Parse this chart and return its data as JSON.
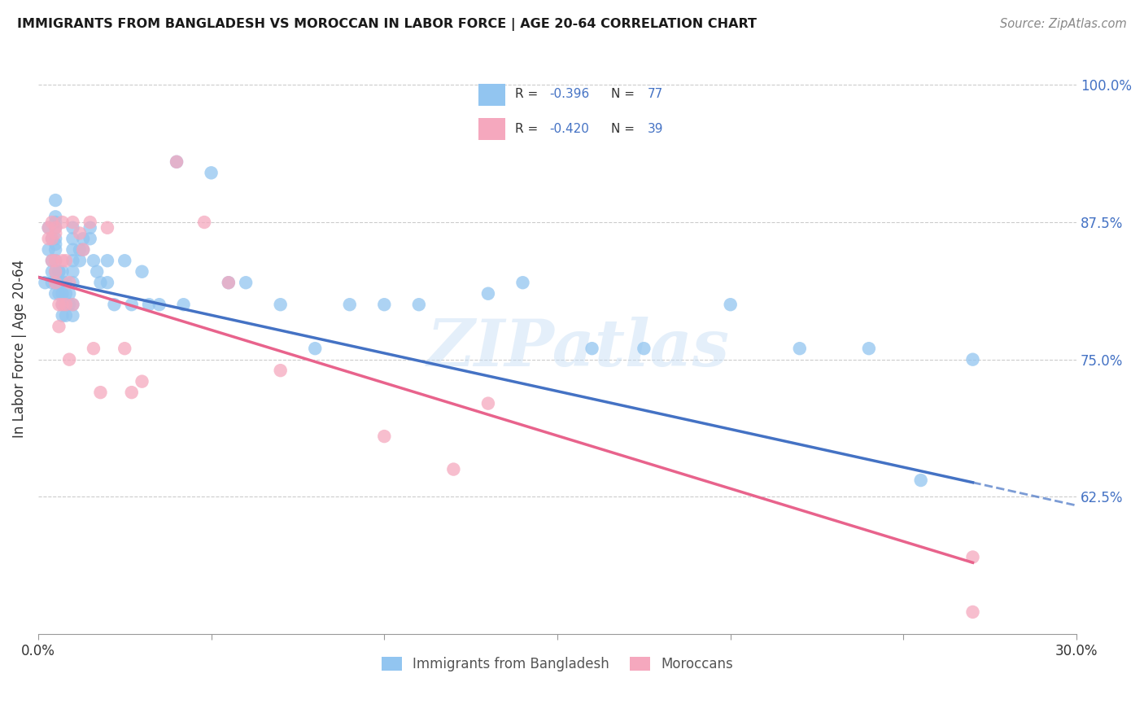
{
  "title": "IMMIGRANTS FROM BANGLADESH VS MOROCCAN IN LABOR FORCE | AGE 20-64 CORRELATION CHART",
  "source": "Source: ZipAtlas.com",
  "ylabel": "In Labor Force | Age 20-64",
  "xlim": [
    0.0,
    0.3
  ],
  "ylim": [
    0.5,
    1.02
  ],
  "xtick_positions": [
    0.0,
    0.05,
    0.1,
    0.15,
    0.2,
    0.25,
    0.3
  ],
  "xticklabels": [
    "0.0%",
    "",
    "",
    "",
    "",
    "",
    "30.0%"
  ],
  "ytick_positions": [
    0.625,
    0.75,
    0.875,
    1.0
  ],
  "ytick_labels": [
    "62.5%",
    "75.0%",
    "87.5%",
    "100.0%"
  ],
  "color_bangladesh": "#92C5F0",
  "color_morocco": "#F5A8BE",
  "color_line_bangladesh": "#4472C4",
  "color_line_morocco": "#E8638C",
  "color_axis_blue": "#4472C4",
  "color_text_dark": "#333333",
  "color_grid": "#cccccc",
  "legend1_R": "-0.396",
  "legend1_N": "77",
  "legend2_R": "-0.420",
  "legend2_N": "39",
  "watermark_text": "ZIPatlas",
  "line_b_x0": 0.0,
  "line_b_y0": 0.825,
  "line_b_x1": 0.27,
  "line_b_y1": 0.638,
  "line_b_dash_x0": 0.27,
  "line_b_dash_y0": 0.638,
  "line_b_dash_x1": 0.3,
  "line_b_dash_y1": 0.617,
  "line_m_x0": 0.0,
  "line_m_y0": 0.825,
  "line_m_x1": 0.27,
  "line_m_y1": 0.565,
  "bangladesh_x": [
    0.002,
    0.003,
    0.003,
    0.004,
    0.004,
    0.004,
    0.004,
    0.005,
    0.005,
    0.005,
    0.005,
    0.005,
    0.005,
    0.005,
    0.005,
    0.005,
    0.005,
    0.005,
    0.006,
    0.006,
    0.006,
    0.006,
    0.007,
    0.007,
    0.007,
    0.007,
    0.007,
    0.008,
    0.008,
    0.008,
    0.008,
    0.009,
    0.009,
    0.01,
    0.01,
    0.01,
    0.01,
    0.01,
    0.01,
    0.01,
    0.01,
    0.012,
    0.012,
    0.013,
    0.013,
    0.015,
    0.015,
    0.016,
    0.017,
    0.018,
    0.02,
    0.02,
    0.022,
    0.025,
    0.027,
    0.03,
    0.032,
    0.035,
    0.04,
    0.042,
    0.05,
    0.055,
    0.06,
    0.07,
    0.08,
    0.09,
    0.1,
    0.11,
    0.13,
    0.14,
    0.16,
    0.175,
    0.2,
    0.22,
    0.24,
    0.255,
    0.27
  ],
  "bangladesh_y": [
    0.82,
    0.85,
    0.87,
    0.86,
    0.84,
    0.83,
    0.82,
    0.895,
    0.88,
    0.875,
    0.87,
    0.86,
    0.855,
    0.85,
    0.84,
    0.83,
    0.82,
    0.81,
    0.83,
    0.83,
    0.82,
    0.81,
    0.83,
    0.82,
    0.81,
    0.8,
    0.79,
    0.82,
    0.81,
    0.8,
    0.79,
    0.81,
    0.8,
    0.87,
    0.86,
    0.85,
    0.84,
    0.83,
    0.82,
    0.8,
    0.79,
    0.85,
    0.84,
    0.86,
    0.85,
    0.87,
    0.86,
    0.84,
    0.83,
    0.82,
    0.84,
    0.82,
    0.8,
    0.84,
    0.8,
    0.83,
    0.8,
    0.8,
    0.93,
    0.8,
    0.92,
    0.82,
    0.82,
    0.8,
    0.76,
    0.8,
    0.8,
    0.8,
    0.81,
    0.82,
    0.76,
    0.76,
    0.8,
    0.76,
    0.76,
    0.64,
    0.75
  ],
  "morocco_x": [
    0.003,
    0.003,
    0.004,
    0.004,
    0.004,
    0.005,
    0.005,
    0.005,
    0.005,
    0.005,
    0.006,
    0.006,
    0.007,
    0.007,
    0.007,
    0.008,
    0.008,
    0.009,
    0.009,
    0.01,
    0.01,
    0.012,
    0.013,
    0.015,
    0.016,
    0.018,
    0.02,
    0.025,
    0.027,
    0.03,
    0.04,
    0.048,
    0.055,
    0.07,
    0.1,
    0.12,
    0.13,
    0.27,
    0.27
  ],
  "morocco_y": [
    0.87,
    0.86,
    0.875,
    0.86,
    0.84,
    0.87,
    0.865,
    0.84,
    0.83,
    0.82,
    0.8,
    0.78,
    0.875,
    0.84,
    0.8,
    0.84,
    0.8,
    0.82,
    0.75,
    0.875,
    0.8,
    0.865,
    0.85,
    0.875,
    0.76,
    0.72,
    0.87,
    0.76,
    0.72,
    0.73,
    0.93,
    0.875,
    0.82,
    0.74,
    0.68,
    0.65,
    0.71,
    0.57,
    0.52
  ]
}
